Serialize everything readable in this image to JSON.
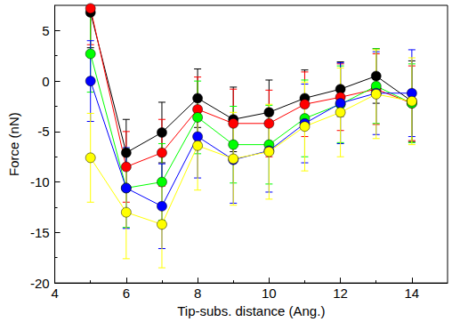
{
  "chart_data": {
    "type": "line",
    "x_label": "Tip-subs. distance (Ang.)",
    "y_label": "Force (nN)",
    "xlim": [
      4,
      15
    ],
    "xticks": [
      4,
      6,
      8,
      10,
      12,
      14
    ],
    "ylim": [
      -20,
      7.5
    ],
    "yticks": [
      -20,
      -15,
      -10,
      -5,
      0,
      5
    ],
    "grid": false,
    "marker": "circle",
    "series": [
      {
        "color": "#000000",
        "x": [
          5,
          6,
          7,
          8,
          9,
          10,
          11,
          12,
          13,
          14
        ],
        "values": [
          6.8,
          -7.1,
          -5.1,
          -1.7,
          -3.8,
          -3.1,
          -1.7,
          -0.8,
          0.5,
          -2.0
        ],
        "errors": [
          3.5,
          3.3,
          3.0,
          2.9,
          3.2,
          3.2,
          2.8,
          2.7,
          2.7,
          4.0
        ]
      },
      {
        "color": "#ff0000",
        "x": [
          5,
          6,
          7,
          8,
          9,
          10,
          11,
          12,
          13,
          14
        ],
        "values": [
          7.2,
          -8.5,
          -7.1,
          -2.8,
          -4.2,
          -4.2,
          -2.3,
          -1.6,
          -0.8,
          -2.2
        ],
        "errors": [
          3.6,
          3.5,
          3.3,
          3.2,
          3.4,
          3.3,
          3.2,
          3.3,
          3.5,
          3.7
        ]
      },
      {
        "color": "#00ff00",
        "x": [
          5,
          6,
          7,
          8,
          9,
          10,
          11,
          12,
          13,
          14
        ],
        "values": [
          2.7,
          -10.6,
          -10.0,
          -3.6,
          -6.3,
          -6.3,
          -3.7,
          -2.3,
          -0.5,
          -2.2
        ],
        "errors": [
          3.8,
          3.9,
          3.8,
          3.6,
          3.8,
          3.9,
          3.8,
          3.8,
          3.7,
          3.9
        ]
      },
      {
        "color": "#0000ff",
        "x": [
          5,
          6,
          7,
          8,
          9,
          10,
          11,
          12,
          13,
          14
        ],
        "values": [
          0.0,
          -10.6,
          -12.4,
          -5.5,
          -7.8,
          -6.9,
          -4.2,
          -2.2,
          -1.2,
          -1.2
        ],
        "errors": [
          4.0,
          4.0,
          4.2,
          4.1,
          4.3,
          4.1,
          3.9,
          4.0,
          4.1,
          4.3
        ]
      },
      {
        "color": "#ffff00",
        "x": [
          5,
          6,
          7,
          8,
          9,
          10,
          11,
          12,
          13,
          14
        ],
        "values": [
          -7.6,
          -13.0,
          -14.2,
          -6.4,
          -7.7,
          -7.0,
          -4.5,
          -3.1,
          -1.3,
          -2.0
        ],
        "errors": [
          4.4,
          4.6,
          4.3,
          4.4,
          4.6,
          4.7,
          4.4,
          4.4,
          4.4,
          4.3
        ]
      }
    ]
  }
}
